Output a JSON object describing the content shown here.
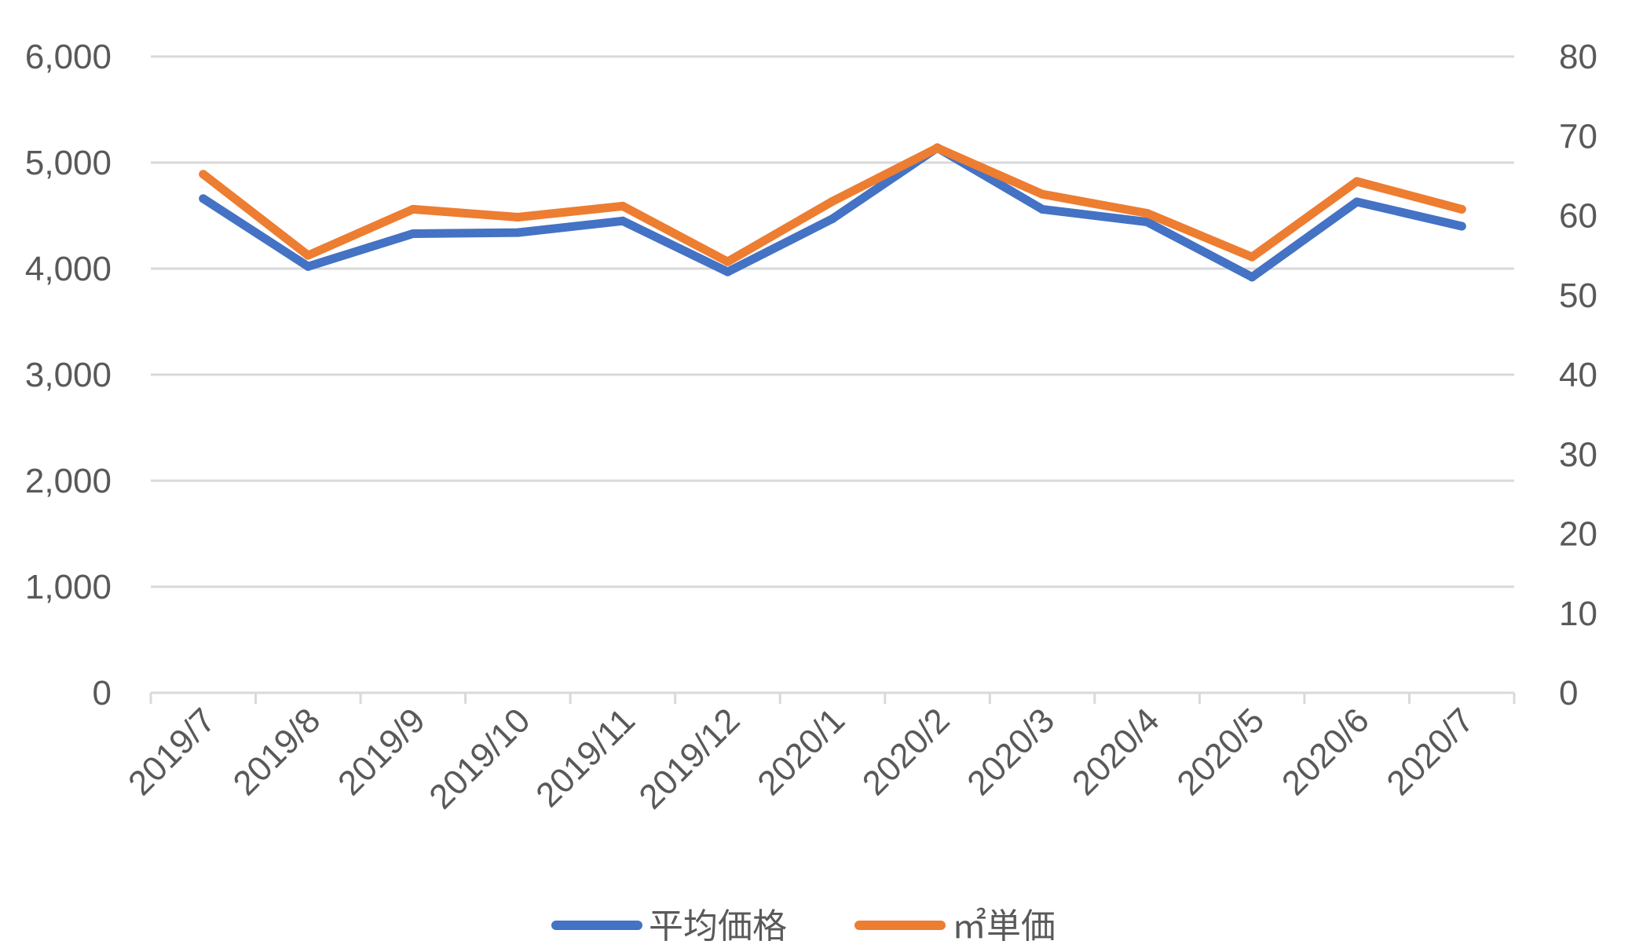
{
  "chart_data": {
    "type": "line",
    "title": "",
    "xlabel": "",
    "ylabel": "",
    "categories": [
      "2019/7",
      "2019/8",
      "2019/9",
      "2019/10",
      "2019/11",
      "2019/12",
      "2020/1",
      "2020/2",
      "2020/3",
      "2020/4",
      "2020/5",
      "2020/6",
      "2020/7"
    ],
    "ylim": [
      0,
      6000
    ],
    "y_ticks": [
      "0",
      "1,000",
      "2,000",
      "3,000",
      "4,000",
      "5,000",
      "6,000"
    ],
    "y2lim": [
      0,
      80
    ],
    "y2_ticks": [
      "0",
      "10",
      "20",
      "30",
      "40",
      "50",
      "60",
      "70",
      "80"
    ],
    "grid": true,
    "legend_position": "bottom",
    "series": [
      {
        "name": "平均価格",
        "axis": "left",
        "color": "#4472C4",
        "values": [
          4660,
          4020,
          4330,
          4340,
          4450,
          3970,
          4470,
          5140,
          4560,
          4440,
          3920,
          4630,
          4400
        ]
      },
      {
        "name": "㎡単価",
        "axis": "right",
        "color": "#ED7D31",
        "values": [
          65.2,
          55.0,
          60.8,
          59.8,
          61.2,
          54.2,
          61.8,
          68.5,
          62.7,
          60.3,
          54.8,
          64.3,
          60.8
        ]
      }
    ]
  }
}
